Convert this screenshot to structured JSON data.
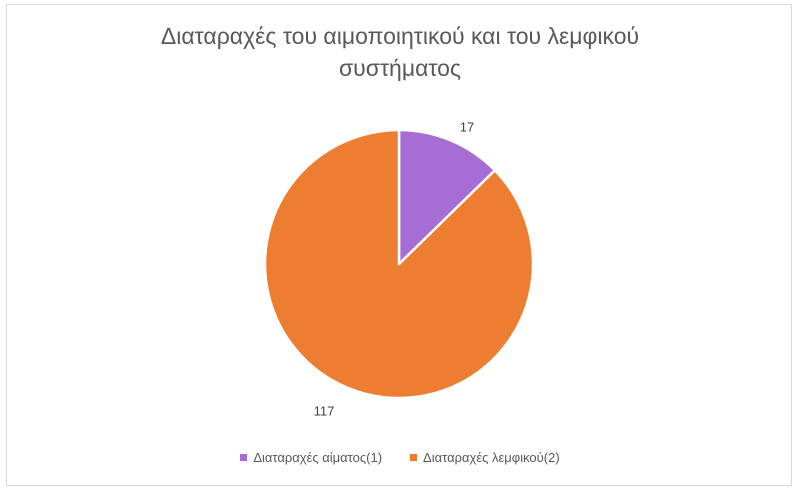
{
  "chart_data": {
    "type": "pie",
    "title": "Διαταραχές του αιμοποιητικού και του λεμφικού συστήματος",
    "title_lines": [
      "Διαταραχές του αιμοποιητικού και του λεμφικού",
      "συστήματος"
    ],
    "categories": [
      "Διαταραχές αίματος(1)",
      "Διαταραχές λεμφικού(2)"
    ],
    "values": [
      17,
      117
    ],
    "colors": [
      "#a66dd4",
      "#ed7d31"
    ],
    "data_labels": [
      "17",
      "117"
    ],
    "start_angle_deg": 0,
    "direction": "clockwise",
    "legend_position": "bottom"
  }
}
